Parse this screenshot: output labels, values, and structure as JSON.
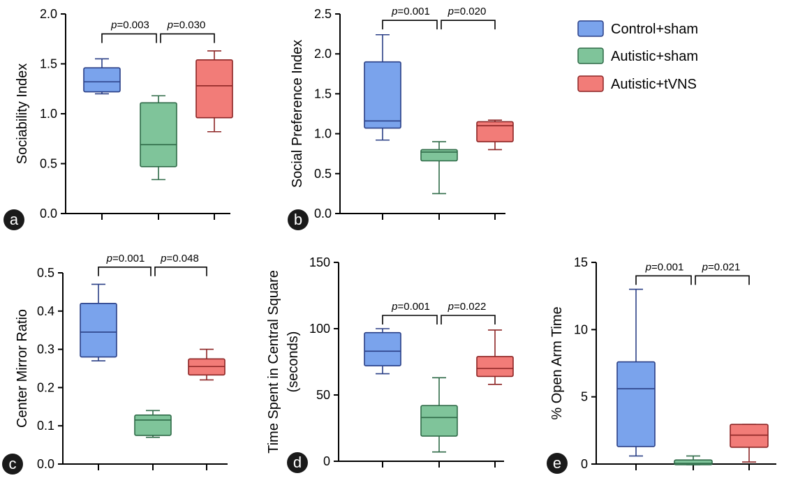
{
  "legend": [
    {
      "label": "Control+sham",
      "fill": "#7aa3ec",
      "stroke": "#2a3f86"
    },
    {
      "label": "Autistic+sham",
      "fill": "#7fc49a",
      "stroke": "#2e6a47"
    },
    {
      "label": "Autistic+tVNS",
      "fill": "#f27c78",
      "stroke": "#8c2424"
    }
  ],
  "chart_data": [
    {
      "panel": "a",
      "type": "box",
      "ylabel": "Sociability Index",
      "ylim": [
        0,
        2.0
      ],
      "yticks": [
        "0.0",
        "0.5",
        "1.0",
        "1.5",
        "2.0"
      ],
      "ytick_values": [
        0,
        0.5,
        1.0,
        1.5,
        2.0
      ],
      "groups": [
        "Control+sham",
        "Autistic+sham",
        "Autistic+tVNS"
      ],
      "boxes": [
        {
          "min": 1.2,
          "q1": 1.22,
          "median": 1.32,
          "q3": 1.46,
          "max": 1.55
        },
        {
          "min": 0.34,
          "q1": 0.47,
          "median": 0.69,
          "q3": 1.11,
          "max": 1.18
        },
        {
          "min": 0.82,
          "q1": 0.96,
          "median": 1.28,
          "q3": 1.54,
          "max": 1.63
        }
      ],
      "comparisons": [
        {
          "p_label": "p",
          "p_value": "=0.003",
          "y": 1.8
        },
        {
          "p_label": "p",
          "p_value": "=0.030",
          "y": 1.8
        }
      ]
    },
    {
      "panel": "b",
      "type": "box",
      "ylabel": "Social Preference Index",
      "ylim": [
        0,
        2.5
      ],
      "yticks": [
        "0.0",
        "0.5",
        "1.0",
        "1.5",
        "2.0",
        "2.5"
      ],
      "ytick_values": [
        0,
        0.5,
        1.0,
        1.5,
        2.0,
        2.5
      ],
      "groups": [
        "Control+sham",
        "Autistic+sham",
        "Autistic+tVNS"
      ],
      "boxes": [
        {
          "min": 0.92,
          "q1": 1.07,
          "median": 1.16,
          "q3": 1.9,
          "max": 2.24
        },
        {
          "min": 0.25,
          "q1": 0.66,
          "median": 0.77,
          "q3": 0.8,
          "max": 0.9
        },
        {
          "min": 0.8,
          "q1": 0.9,
          "median": 1.1,
          "q3": 1.15,
          "max": 1.17
        }
      ],
      "comparisons": [
        {
          "p_label": "p",
          "p_value": "=0.001",
          "y": 2.42
        },
        {
          "p_label": "p",
          "p_value": "=0.020",
          "y": 2.42
        }
      ]
    },
    {
      "panel": "c",
      "type": "box",
      "ylabel": "Center Mirror Ratio",
      "ylim": [
        0,
        0.5
      ],
      "yticks": [
        "0.0",
        "0.1",
        "0.2",
        "0.3",
        "0.4",
        "0.5"
      ],
      "ytick_values": [
        0,
        0.1,
        0.2,
        0.3,
        0.4,
        0.5
      ],
      "groups": [
        "Control+sham",
        "Autistic+sham",
        "Autistic+tVNS"
      ],
      "boxes": [
        {
          "min": 0.27,
          "q1": 0.28,
          "median": 0.345,
          "q3": 0.42,
          "max": 0.47
        },
        {
          "min": 0.07,
          "q1": 0.075,
          "median": 0.115,
          "q3": 0.128,
          "max": 0.14
        },
        {
          "min": 0.22,
          "q1": 0.233,
          "median": 0.255,
          "q3": 0.275,
          "max": 0.3
        }
      ],
      "comparisons": [
        {
          "p_label": "p",
          "p_value": "=0.001",
          "y": 0.515
        },
        {
          "p_label": "p",
          "p_value": "=0.048",
          "y": 0.515
        }
      ]
    },
    {
      "panel": "d",
      "type": "box",
      "ylabel": "Time Spent in Central Square",
      "ylabel2": "(seconds)",
      "ylim": [
        0,
        150
      ],
      "yticks": [
        "0",
        "50",
        "100",
        "150"
      ],
      "ytick_values": [
        0,
        50,
        100,
        150
      ],
      "groups": [
        "Control+sham",
        "Autistic+sham",
        "Autistic+tVNS"
      ],
      "boxes": [
        {
          "min": 66,
          "q1": 72,
          "median": 83,
          "q3": 97,
          "max": 100
        },
        {
          "min": 7,
          "q1": 19,
          "median": 33,
          "q3": 42,
          "max": 63
        },
        {
          "min": 58,
          "q1": 64,
          "median": 70,
          "q3": 79,
          "max": 99
        }
      ],
      "comparisons": [
        {
          "p_label": "p",
          "p_value": "=0.001",
          "y": 110
        },
        {
          "p_label": "p",
          "p_value": "=0.022",
          "y": 110
        }
      ]
    },
    {
      "panel": "e",
      "type": "box",
      "ylabel": "% Open Arm Time",
      "ylim": [
        0,
        15
      ],
      "yticks": [
        "0",
        "5",
        "10",
        "15"
      ],
      "ytick_values": [
        0,
        5,
        10,
        15
      ],
      "groups": [
        "Control+sham",
        "Autistic+sham",
        "Autistic+tVNS"
      ],
      "boxes": [
        {
          "min": 0.6,
          "q1": 1.3,
          "median": 5.6,
          "q3": 7.6,
          "max": 13
        },
        {
          "min": -0.05,
          "q1": -0.05,
          "median": 0.05,
          "q3": 0.3,
          "max": 0.6
        },
        {
          "min": 0.15,
          "q1": 1.25,
          "median": 2.15,
          "q3": 2.95,
          "max": 2.95
        }
      ],
      "comparisons": [
        {
          "p_label": "p",
          "p_value": "=0.001",
          "y": 14.0
        },
        {
          "p_label": "p",
          "p_value": "=0.021",
          "y": 14.0
        }
      ]
    }
  ]
}
